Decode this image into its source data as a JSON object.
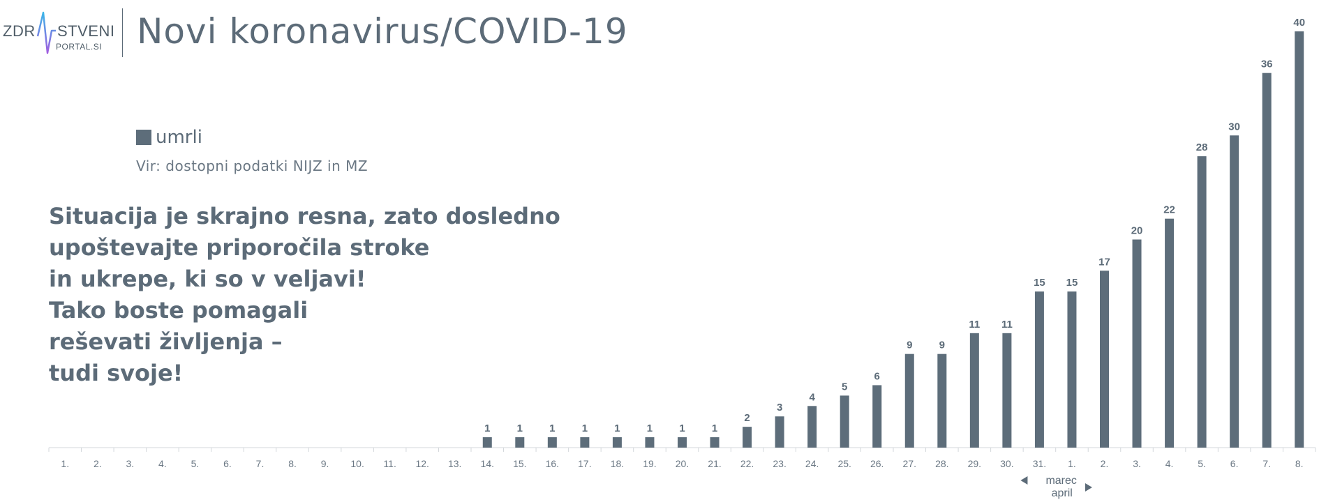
{
  "logo": {
    "left_text": "ZDR",
    "right_text": "STVENI",
    "sub_text": "PORTAL.SI"
  },
  "title": {
    "main": "Novi koronavirus",
    "sep": "/",
    "suffix": "COVID-19"
  },
  "legend": {
    "label": "umrli",
    "color": "#5d6d7a"
  },
  "source": "Vir: dostopni podatki NIJZ in MZ",
  "message": [
    "Situacija je skrajno resna, zato dosledno",
    "upoštevajte priporočila stroke",
    "in ukrepe, ki so v veljavi!",
    "Tako boste pomagali",
    "reševati življenja –",
    "tudi svoje!"
  ],
  "month_labels": {
    "left": "marec",
    "right": "april"
  },
  "chart_data": {
    "type": "bar",
    "categories": [
      "1.",
      "2.",
      "3.",
      "4.",
      "5.",
      "6.",
      "7.",
      "8.",
      "9.",
      "10.",
      "11.",
      "12.",
      "13.",
      "14.",
      "15.",
      "16.",
      "17.",
      "18.",
      "19.",
      "20.",
      "21.",
      "22.",
      "23.",
      "24.",
      "25.",
      "26.",
      "27.",
      "28.",
      "29.",
      "30.",
      "31.",
      "1.",
      "2.",
      "3.",
      "4.",
      "5.",
      "6.",
      "7.",
      "8."
    ],
    "series": [
      {
        "name": "umrli",
        "values": [
          0,
          0,
          0,
          0,
          0,
          0,
          0,
          0,
          0,
          0,
          0,
          0,
          0,
          1,
          1,
          1,
          1,
          1,
          1,
          1,
          1,
          2,
          3,
          4,
          5,
          6,
          9,
          9,
          11,
          11,
          15,
          15,
          17,
          20,
          22,
          28,
          30,
          36,
          40
        ]
      }
    ],
    "data_labels_from_index": 13,
    "ylim": [
      0,
      40
    ],
    "bar_color": "#5d6d7a",
    "title": "Novi koronavirus/COVID-19",
    "xlabel": "",
    "ylabel": "",
    "grid": false,
    "legend_position": "top-left"
  }
}
